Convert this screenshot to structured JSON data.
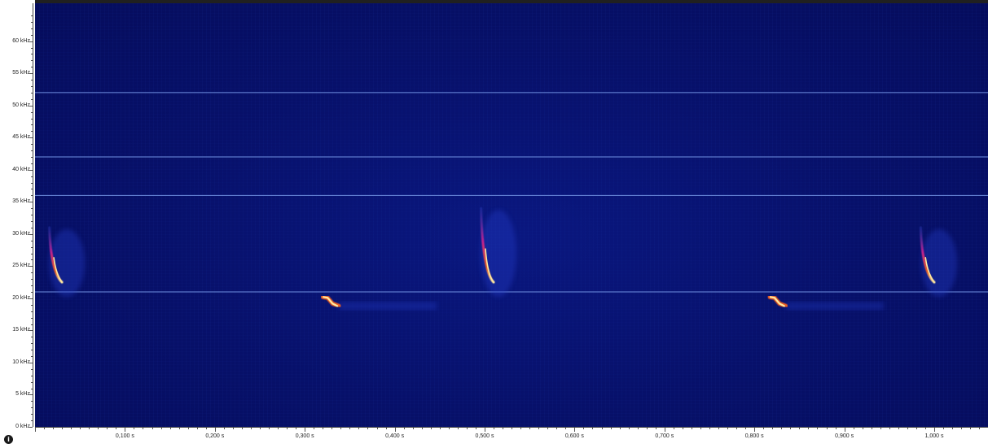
{
  "colors": {
    "background": "#060d62",
    "guide_line": "#6f8fe0",
    "call_hot": "#ffe8a0",
    "call_warm": "#f06020",
    "call_cool": "#c02090",
    "halo": "#2840d0"
  },
  "info_icon": {
    "name": "info-icon",
    "glyph": "i"
  },
  "chart_data": {
    "type": "heatmap",
    "title": "",
    "xlabel": "",
    "ylabel": "",
    "xlim": [
      0.0,
      1.08
    ],
    "ylim": [
      0,
      64
    ],
    "x_tick_labels": [
      {
        "value": 0.1,
        "label": "0,100 s"
      },
      {
        "value": 0.2,
        "label": "0,200 s"
      },
      {
        "value": 0.3,
        "label": "0,300 s"
      },
      {
        "value": 0.4,
        "label": "0,400 s"
      },
      {
        "value": 0.5,
        "label": "0,500 s"
      },
      {
        "value": 0.6,
        "label": "0,600 s"
      },
      {
        "value": 0.7,
        "label": "0,700 s"
      },
      {
        "value": 0.8,
        "label": "0,800 s"
      },
      {
        "value": 0.9,
        "label": "0,900 s"
      },
      {
        "value": 1.0,
        "label": "1,000 s"
      }
    ],
    "y_tick_labels": [
      {
        "value": 0,
        "label": "0 kHz"
      },
      {
        "value": 5,
        "label": "5 kHz"
      },
      {
        "value": 10,
        "label": "10 kHz"
      },
      {
        "value": 15,
        "label": "15 kHz"
      },
      {
        "value": 20,
        "label": "20 kHz"
      },
      {
        "value": 25,
        "label": "25 kHz"
      },
      {
        "value": 30,
        "label": "30 kHz"
      },
      {
        "value": 35,
        "label": "35 kHz"
      },
      {
        "value": 40,
        "label": "40 kHz"
      },
      {
        "value": 45,
        "label": "45 kHz"
      },
      {
        "value": 50,
        "label": "50 kHz"
      },
      {
        "value": 55,
        "label": "55 kHz"
      },
      {
        "value": 60,
        "label": "60 kHz"
      }
    ],
    "horizontal_guides_khz": [
      52,
      42,
      36,
      21
    ],
    "calls": [
      {
        "kind": "fm",
        "t_start": 0.016,
        "t_end": 0.03,
        "f_start": 31,
        "f_end": 22.5
      },
      {
        "kind": "qcf",
        "t_start": 0.32,
        "t_end": 0.338,
        "f_start": 20.2,
        "f_end": 18.8
      },
      {
        "kind": "fm",
        "t_start": 0.496,
        "t_end": 0.51,
        "f_start": 34,
        "f_end": 22.5
      },
      {
        "kind": "qcf",
        "t_start": 0.817,
        "t_end": 0.835,
        "f_start": 20.2,
        "f_end": 18.8
      },
      {
        "kind": "fm",
        "t_start": 0.985,
        "t_end": 1.0,
        "f_start": 31,
        "f_end": 22.5
      }
    ]
  }
}
